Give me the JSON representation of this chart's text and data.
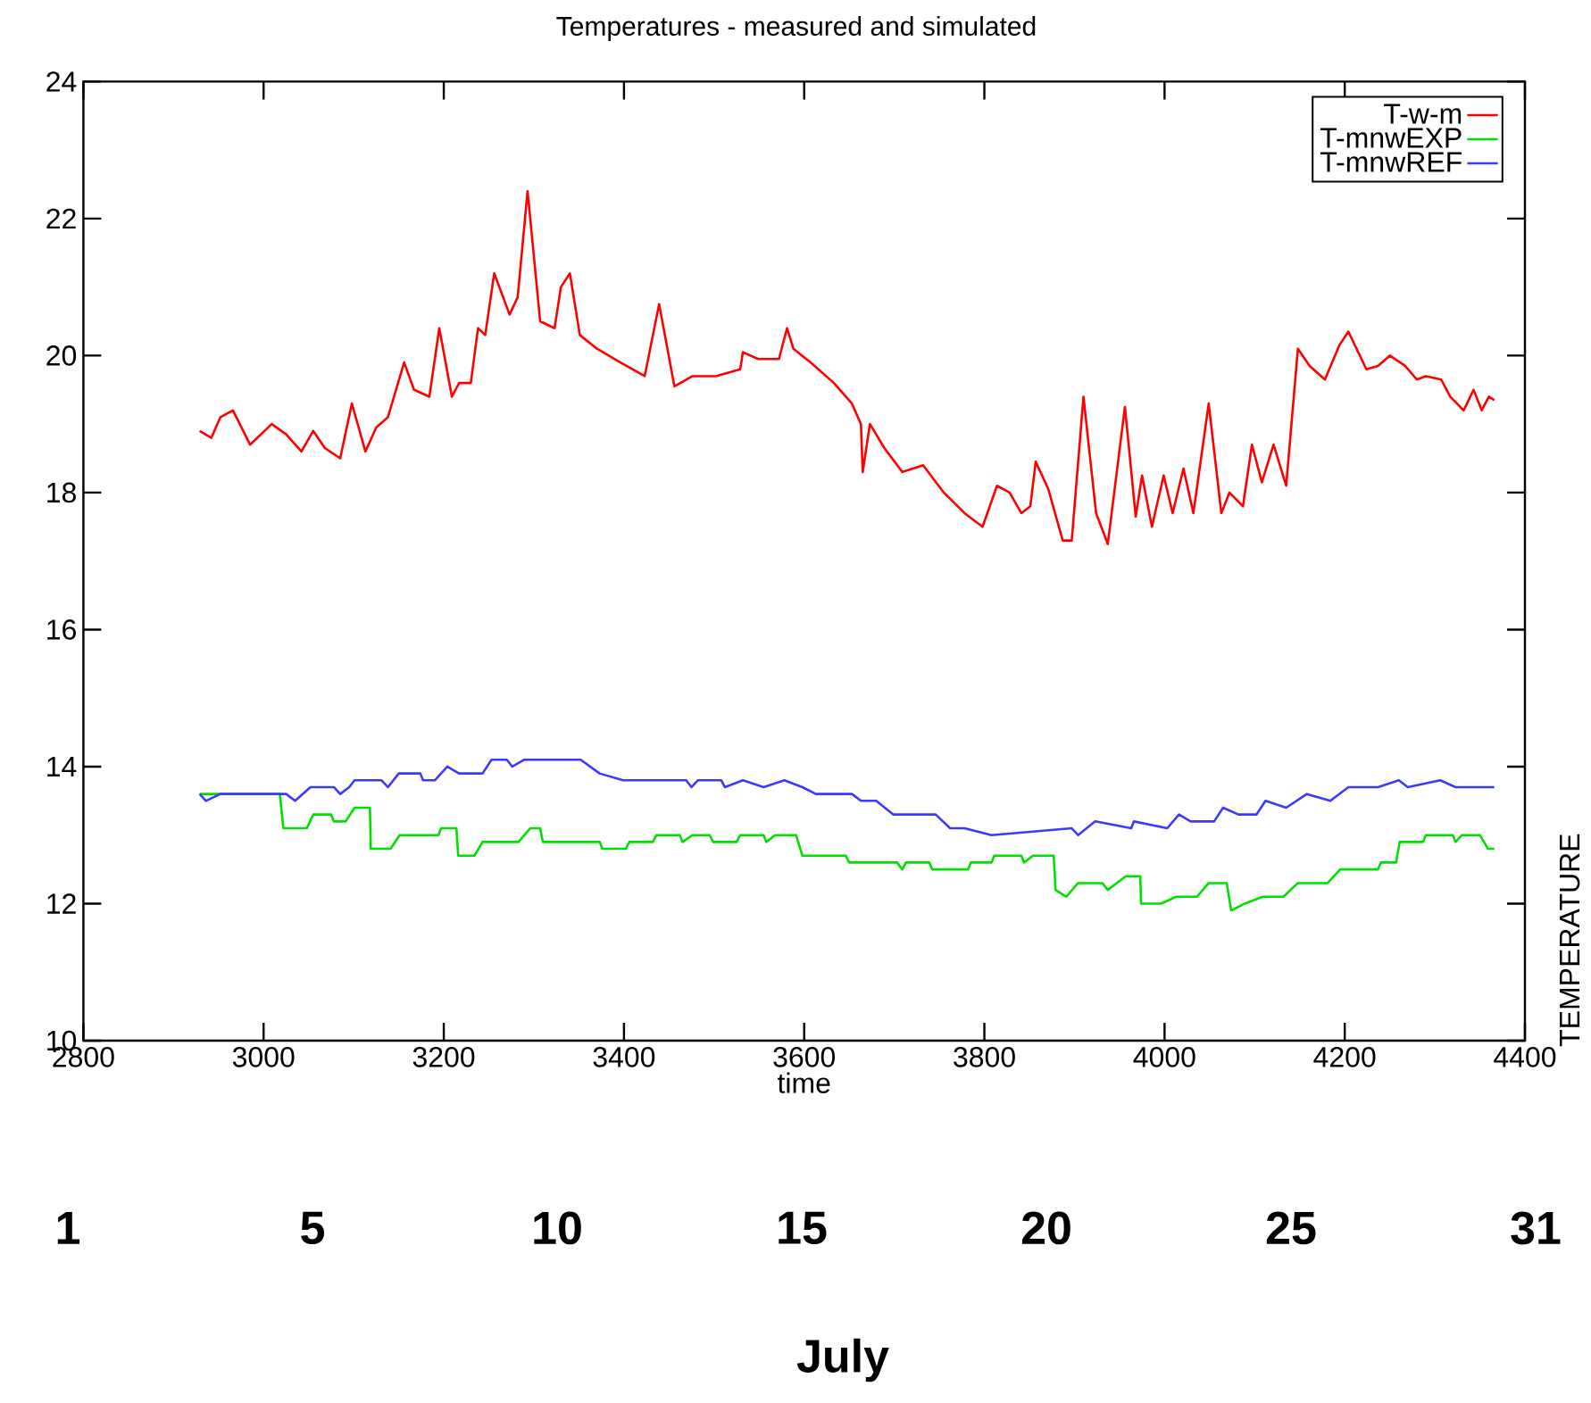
{
  "chart_data": {
    "type": "line",
    "title": "Temperatures - measured and simulated",
    "xlabel": "time",
    "ylabel": "TEMPERATURE",
    "xlim": [
      2800,
      4400
    ],
    "ylim": [
      10,
      24
    ],
    "xticks": [
      2800,
      3000,
      3200,
      3400,
      3600,
      3800,
      4000,
      4200,
      4400
    ],
    "yticks": [
      10,
      12,
      14,
      16,
      18,
      20,
      22,
      24
    ],
    "legend": "top right",
    "annotations": [
      "1",
      "5",
      "10",
      "15",
      "20",
      "25",
      "31",
      "July"
    ],
    "series": [
      {
        "name": "T-w-m",
        "color": "#ff0000",
        "x": [
          2929,
          2942,
          2952,
          2966,
          2985,
          3009,
          3025,
          3042,
          3055,
          3068,
          3085,
          3098,
          3113,
          3125,
          3138,
          3156,
          3167,
          3184,
          3195,
          3209,
          3217,
          3230,
          3238,
          3246,
          3256,
          3273,
          3282,
          3293,
          3307,
          3323,
          3330,
          3340,
          3351,
          3370,
          3396,
          3423,
          3439,
          3456,
          3476,
          3502,
          3529,
          3532,
          3549,
          3572,
          3581,
          3588,
          3607,
          3633,
          3653,
          3663,
          3665,
          3673,
          3689,
          3709,
          3732,
          3755,
          3778,
          3798,
          3814,
          3828,
          3841,
          3851,
          3857,
          3871,
          3887,
          3897,
          3910,
          3924,
          3937,
          3956,
          3968,
          3975,
          3986,
          3999,
          4009,
          4021,
          4032,
          4049,
          4063,
          4072,
          4087,
          4097,
          4108,
          4121,
          4135,
          4148,
          4161,
          4178,
          4194,
          4204,
          4224,
          4237,
          4250,
          4267,
          4280,
          4290,
          4307,
          4317,
          4332,
          4343,
          4352,
          4360,
          4366
        ],
        "values": [
          18.9,
          18.8,
          19.1,
          19.2,
          18.7,
          19.0,
          18.85,
          18.6,
          18.9,
          18.65,
          18.5,
          19.3,
          18.6,
          18.95,
          19.1,
          19.9,
          19.5,
          19.4,
          20.4,
          19.4,
          19.6,
          19.6,
          20.4,
          20.3,
          21.2,
          20.6,
          20.85,
          22.4,
          20.5,
          20.4,
          21.0,
          21.2,
          20.3,
          20.1,
          19.9,
          19.7,
          20.75,
          19.55,
          19.7,
          19.7,
          19.8,
          20.05,
          19.95,
          19.95,
          20.4,
          20.1,
          19.9,
          19.6,
          19.3,
          19.0,
          18.3,
          19.0,
          18.65,
          18.3,
          18.4,
          18.0,
          17.7,
          17.5,
          18.1,
          18.0,
          17.7,
          17.8,
          18.45,
          18.05,
          17.3,
          17.3,
          19.4,
          17.7,
          17.25,
          19.25,
          17.65,
          18.25,
          17.5,
          18.25,
          17.7,
          18.35,
          17.7,
          19.3,
          17.7,
          18.0,
          17.8,
          18.7,
          18.15,
          18.7,
          18.1,
          20.1,
          19.85,
          19.65,
          20.15,
          20.35,
          19.8,
          19.85,
          20.0,
          19.85,
          19.65,
          19.7,
          19.65,
          19.4,
          19.2,
          19.5,
          19.2,
          19.4,
          19.35
        ]
      },
      {
        "name": "T-mnwEXP",
        "color": "#00e000",
        "x": [
          2929,
          3018,
          3022,
          3048,
          3055,
          3075,
          3078,
          3091,
          3101,
          3118,
          3119,
          3141,
          3151,
          3194,
          3197,
          3214,
          3216,
          3234,
          3243,
          3283,
          3296,
          3307,
          3310,
          3373,
          3376,
          3402,
          3406,
          3432,
          3436,
          3462,
          3465,
          3476,
          3495,
          3499,
          3525,
          3529,
          3555,
          3558,
          3568,
          3591,
          3598,
          3646,
          3650,
          3703,
          3709,
          3713,
          3739,
          3742,
          3782,
          3785,
          3808,
          3811,
          3841,
          3844,
          3854,
          3877,
          3879,
          3891,
          3904,
          3931,
          3937,
          3957,
          3973,
          3974,
          3996,
          4013,
          4036,
          4049,
          4069,
          4074,
          4089,
          4109,
          4132,
          4148,
          4181,
          4195,
          4237,
          4240,
          4257,
          4261,
          4287,
          4290,
          4320,
          4323,
          4330,
          4350,
          4359,
          4366
        ],
        "values": [
          13.6,
          13.6,
          13.1,
          13.1,
          13.3,
          13.3,
          13.2,
          13.2,
          13.4,
          13.4,
          12.8,
          12.8,
          13.0,
          13.0,
          13.1,
          13.1,
          12.7,
          12.7,
          12.9,
          12.9,
          13.1,
          13.1,
          12.9,
          12.9,
          12.8,
          12.8,
          12.9,
          12.9,
          13.0,
          13.0,
          12.9,
          13.0,
          13.0,
          12.9,
          12.9,
          13.0,
          13.0,
          12.9,
          13.0,
          13.0,
          12.7,
          12.7,
          12.6,
          12.6,
          12.5,
          12.6,
          12.6,
          12.5,
          12.5,
          12.6,
          12.6,
          12.7,
          12.7,
          12.6,
          12.7,
          12.7,
          12.2,
          12.1,
          12.3,
          12.3,
          12.2,
          12.4,
          12.4,
          12.0,
          12.0,
          12.1,
          12.1,
          12.3,
          12.3,
          11.9,
          12.0,
          12.1,
          12.1,
          12.3,
          12.3,
          12.5,
          12.5,
          12.6,
          12.6,
          12.9,
          12.9,
          13.0,
          13.0,
          12.9,
          13.0,
          13.0,
          12.8,
          12.8
        ]
      },
      {
        "name": "T-mnwREF",
        "color": "#3a3aff",
        "x": [
          2929,
          2936,
          2952,
          2985,
          3025,
          3035,
          3052,
          3078,
          3085,
          3095,
          3101,
          3131,
          3138,
          3150,
          3174,
          3177,
          3190,
          3204,
          3217,
          3243,
          3253,
          3270,
          3276,
          3289,
          3352,
          3373,
          3399,
          3469,
          3475,
          3482,
          3508,
          3512,
          3532,
          3555,
          3578,
          3598,
          3613,
          3653,
          3663,
          3680,
          3699,
          3746,
          3762,
          3778,
          3808,
          3897,
          3904,
          3923,
          3963,
          3966,
          4003,
          4016,
          4029,
          4055,
          4065,
          4082,
          4102,
          4112,
          4135,
          4158,
          4184,
          4204,
          4237,
          4260,
          4270,
          4306,
          4323,
          4366
        ],
        "values": [
          13.6,
          13.5,
          13.6,
          13.6,
          13.6,
          13.5,
          13.7,
          13.7,
          13.6,
          13.7,
          13.8,
          13.8,
          13.7,
          13.9,
          13.9,
          13.8,
          13.8,
          14.0,
          13.9,
          13.9,
          14.1,
          14.1,
          14.0,
          14.1,
          14.1,
          13.9,
          13.8,
          13.8,
          13.7,
          13.8,
          13.8,
          13.7,
          13.8,
          13.7,
          13.8,
          13.7,
          13.6,
          13.6,
          13.5,
          13.5,
          13.3,
          13.3,
          13.1,
          13.1,
          13.0,
          13.1,
          13.0,
          13.2,
          13.1,
          13.2,
          13.1,
          13.3,
          13.2,
          13.2,
          13.4,
          13.3,
          13.3,
          13.5,
          13.4,
          13.6,
          13.5,
          13.7,
          13.7,
          13.8,
          13.7,
          13.8,
          13.7,
          13.7
        ]
      }
    ]
  }
}
